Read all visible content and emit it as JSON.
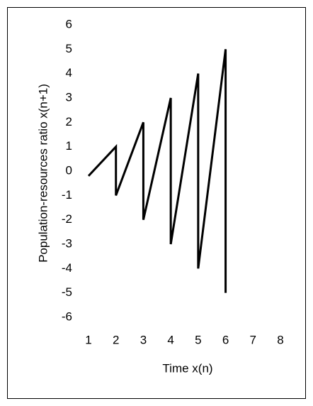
{
  "chart_data": {
    "type": "line",
    "x_label": "Time x(n)",
    "y_label": "Population-resources ratio x(n+1)",
    "x": [
      1,
      2,
      2,
      3,
      3,
      4,
      4,
      5,
      5,
      6,
      6
    ],
    "series": [
      {
        "color": "#000000",
        "values": [
          -0.2,
          1,
          -1,
          2,
          -2,
          3,
          -3,
          4,
          -4,
          5,
          -5
        ]
      }
    ],
    "xlim": [
      1,
      8
    ],
    "xticks": [
      1,
      2,
      3,
      4,
      5,
      6,
      7,
      8
    ],
    "ylim": [
      -6,
      6
    ],
    "yticks": [
      -6,
      -5,
      -4,
      -3,
      -2,
      -1,
      0,
      1,
      2,
      3,
      4,
      5,
      6
    ],
    "grid": false
  }
}
